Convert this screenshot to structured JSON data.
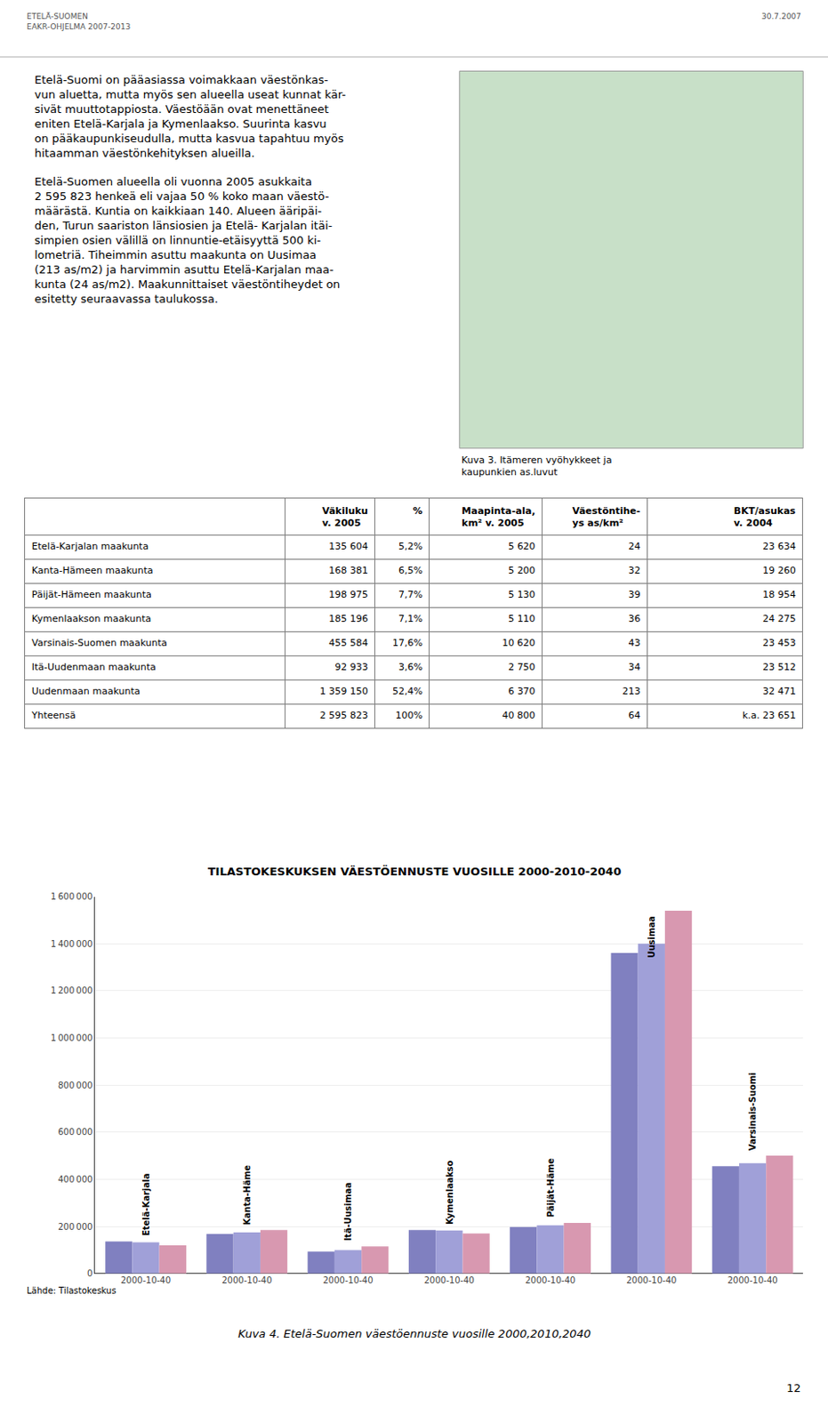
{
  "chart_data": [
    {
      "type": "table",
      "columns": [
        null,
        "Väkiluku\nv. 2005",
        "%",
        "Maapinta-ala,\nkm² v. 2005",
        "Väestöntihe-\nys as/km²",
        "BKT/asukas\nv. 2004"
      ],
      "rows": [
        [
          "Etelä-Karjalan maakunta",
          "135 604",
          "5,2%",
          "5 620",
          "24",
          "23 634"
        ],
        [
          "Kanta-Hämeen maakunta",
          "168 381",
          "6,5%",
          "5 200",
          "32",
          "19 260"
        ],
        [
          "Päijät-Hämeen maakunta",
          "198 975",
          "7,7%",
          "5 130",
          "39",
          "18 954"
        ],
        [
          "Kymenlaakson maakunta",
          "185 196",
          "7,1%",
          "5 110",
          "36",
          "24 275"
        ],
        [
          "Varsinais-Suomen maakunta",
          "455 584",
          "17,6%",
          "10 620",
          "43",
          "23 453"
        ],
        [
          "Itä-Uudenmaan maakunta",
          "92 933",
          "3,6%",
          "2 750",
          "34",
          "23 512"
        ],
        [
          "Uudenmaan maakunta",
          "1 359 150",
          "52,4%",
          "6 370",
          "213",
          "32 471"
        ],
        [
          "Yhteensä",
          "2 595 823",
          "100%",
          "40 800",
          "64",
          "k.a. 23 651"
        ]
      ]
    },
    {
      "type": "bar",
      "title": "TILASTOKESKUKSEN VÄESTÖENNUSTE VUOSILLE 2000-2010-2040",
      "categories": [
        "2000-10-40",
        "2000-10-40",
        "2000-10-40",
        "2000-10-40",
        "2000-10-40",
        "2000-10-40",
        "2000-10-40"
      ],
      "series": [
        {
          "color": "#8080c0",
          "values": [
            136000,
            168000,
            93000,
            185000,
            198000,
            1360000,
            456000
          ]
        },
        {
          "color": "#a0a0d8",
          "values": [
            133000,
            175000,
            100000,
            183000,
            205000,
            1400000,
            468000
          ]
        },
        {
          "color": "#d898b0",
          "values": [
            120000,
            185000,
            115000,
            170000,
            215000,
            1540000,
            500000
          ]
        }
      ],
      "annotations": [
        {
          "text": "Etelä-Karjala",
          "x": 0
        },
        {
          "text": "Kanta-Häme",
          "x": 1
        },
        {
          "text": "Itä-Uusimaa",
          "x": 2
        },
        {
          "text": "Kymenlaakso",
          "x": 3
        },
        {
          "text": "Päijät-Häme",
          "x": 4
        },
        {
          "text": "Uusimaa",
          "x": 5
        },
        {
          "text": "Varsinais-Suomi",
          "x": 6
        }
      ],
      "ylim": [
        0,
        1600000
      ],
      "yticks": [
        0,
        {
          "value": 200000,
          "label": "200 000"
        },
        {
          "value": 400000,
          "label": "400 000"
        },
        {
          "value": 600000,
          "label": "600 000"
        },
        {
          "value": 800000,
          "label": "800 000"
        },
        {
          "value": 1000000,
          "label": "1 000 000"
        },
        {
          "value": 1200000,
          "label": "1 200 000"
        },
        {
          "value": 1400000,
          "label": "1 400 000"
        },
        {
          "value": 1600000,
          "label": "1 600 000"
        }
      ],
      "grid": true
    }
  ],
  "annotations": [
    "ETELÄ-SUOMEN\nEAKR-OHJELMA 2007-2013",
    "30.7.2007",
    "Etelä-Suomi on pääasiassa voimakkaan väestönkas-\nvun aluetta, mutta myös sen alueella useat kunnat kär-\nsivät muuttotappiosta. Väestöään ovat menettäneet\neniten Etelä-Karjala ja Kymenlaakso. Suurinta kasvu\non pääkaupunkiseudulla, mutta kasvua tapahtuu myös\nhitaamman väestönkehityksen alueilla.\n\nEtelä-Suomen alueella oli vuonna 2005 asukkaita\n2 595 823 henkeä eli vajaa 50 % koko maan väestö-\nmäärästä. Kuntia on kaikkiaan 140. Alueen ääripäi-\nden, Turun saariston länsiosien ja Etelä- Karjalan itäi-\nsimpien osien välillä on linnuntie-etäisyyttä 500 ki-\nlometriä. Tiheimmin asuttu maakunta on Uusimaa\n(213 as/m2) ja harvimmin asuttu Etelä-Karjalan maa-\nkunta (24 as/m2). Maakunnittaiset väestöntiheydet on\nesitetty seuraavassa taulukossa.",
    "Kuva 3. Itämeren vyöhykkeet ja\nkaupunkien as.luvut",
    "Lähde: Tilastokeskus",
    "Kuva 4. Etelä-Suomen väestöennuste vuosille 2000,2010,2040",
    "12"
  ]
}
